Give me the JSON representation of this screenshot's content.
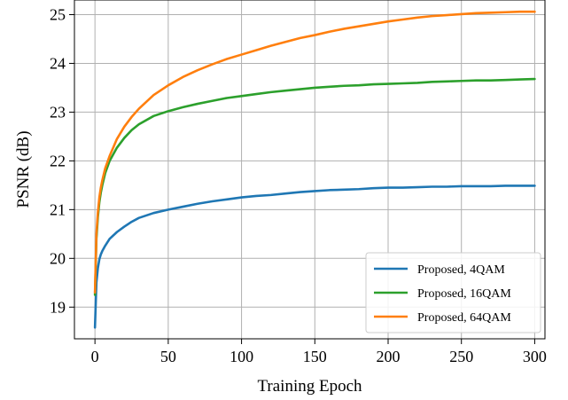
{
  "chart_data": {
    "type": "line",
    "title": "",
    "xlabel": "Training Epoch",
    "ylabel": "PSNR (dB)",
    "xlim": [
      -14,
      307
    ],
    "ylim": [
      18.35,
      25.3
    ],
    "xticks": [
      0,
      50,
      100,
      150,
      200,
      250,
      300
    ],
    "yticks": [
      19,
      20,
      21,
      22,
      23,
      24,
      25
    ],
    "grid": true,
    "legend_position": "lower-right",
    "series": [
      {
        "name": "Proposed, 4QAM",
        "color": "#1f77b4",
        "x": [
          0,
          1,
          2,
          3,
          4,
          5,
          7,
          10,
          15,
          20,
          25,
          30,
          40,
          50,
          60,
          70,
          80,
          90,
          100,
          110,
          120,
          130,
          140,
          150,
          160,
          170,
          180,
          190,
          200,
          210,
          220,
          230,
          240,
          250,
          260,
          270,
          280,
          290,
          300
        ],
        "y": [
          18.58,
          19.5,
          19.8,
          19.98,
          20.08,
          20.15,
          20.26,
          20.4,
          20.54,
          20.65,
          20.75,
          20.83,
          20.93,
          21.0,
          21.06,
          21.12,
          21.17,
          21.21,
          21.25,
          21.28,
          21.3,
          21.33,
          21.36,
          21.38,
          21.4,
          21.41,
          21.42,
          21.44,
          21.45,
          21.45,
          21.46,
          21.47,
          21.47,
          21.48,
          21.48,
          21.48,
          21.49,
          21.49,
          21.49
        ]
      },
      {
        "name": "Proposed, 16QAM",
        "color": "#2ca02c",
        "x": [
          0,
          1,
          2,
          3,
          4,
          5,
          7,
          10,
          15,
          20,
          25,
          30,
          40,
          50,
          60,
          70,
          80,
          90,
          100,
          110,
          120,
          130,
          140,
          150,
          160,
          170,
          180,
          190,
          200,
          210,
          220,
          230,
          240,
          250,
          260,
          270,
          280,
          290,
          300
        ],
        "y": [
          19.25,
          20.4,
          20.85,
          21.15,
          21.35,
          21.5,
          21.75,
          22.0,
          22.27,
          22.47,
          22.63,
          22.75,
          22.92,
          23.02,
          23.1,
          23.17,
          23.23,
          23.29,
          23.33,
          23.37,
          23.41,
          23.44,
          23.47,
          23.5,
          23.52,
          23.54,
          23.55,
          23.57,
          23.58,
          23.59,
          23.6,
          23.62,
          23.63,
          23.64,
          23.65,
          23.65,
          23.66,
          23.67,
          23.68
        ]
      },
      {
        "name": "Proposed, 64QAM",
        "color": "#ff7f0e",
        "x": [
          0,
          1,
          2,
          3,
          4,
          5,
          7,
          10,
          15,
          20,
          25,
          30,
          40,
          50,
          60,
          70,
          80,
          90,
          100,
          110,
          120,
          130,
          140,
          150,
          160,
          170,
          180,
          190,
          200,
          210,
          220,
          230,
          240,
          250,
          260,
          270,
          280,
          290,
          300
        ],
        "y": [
          19.3,
          20.5,
          20.95,
          21.25,
          21.45,
          21.6,
          21.85,
          22.1,
          22.45,
          22.7,
          22.9,
          23.07,
          23.35,
          23.55,
          23.72,
          23.86,
          23.98,
          24.09,
          24.18,
          24.27,
          24.36,
          24.44,
          24.52,
          24.58,
          24.65,
          24.71,
          24.76,
          24.81,
          24.86,
          24.9,
          24.94,
          24.97,
          24.99,
          25.01,
          25.03,
          25.04,
          25.05,
          25.06,
          25.06
        ]
      }
    ]
  }
}
